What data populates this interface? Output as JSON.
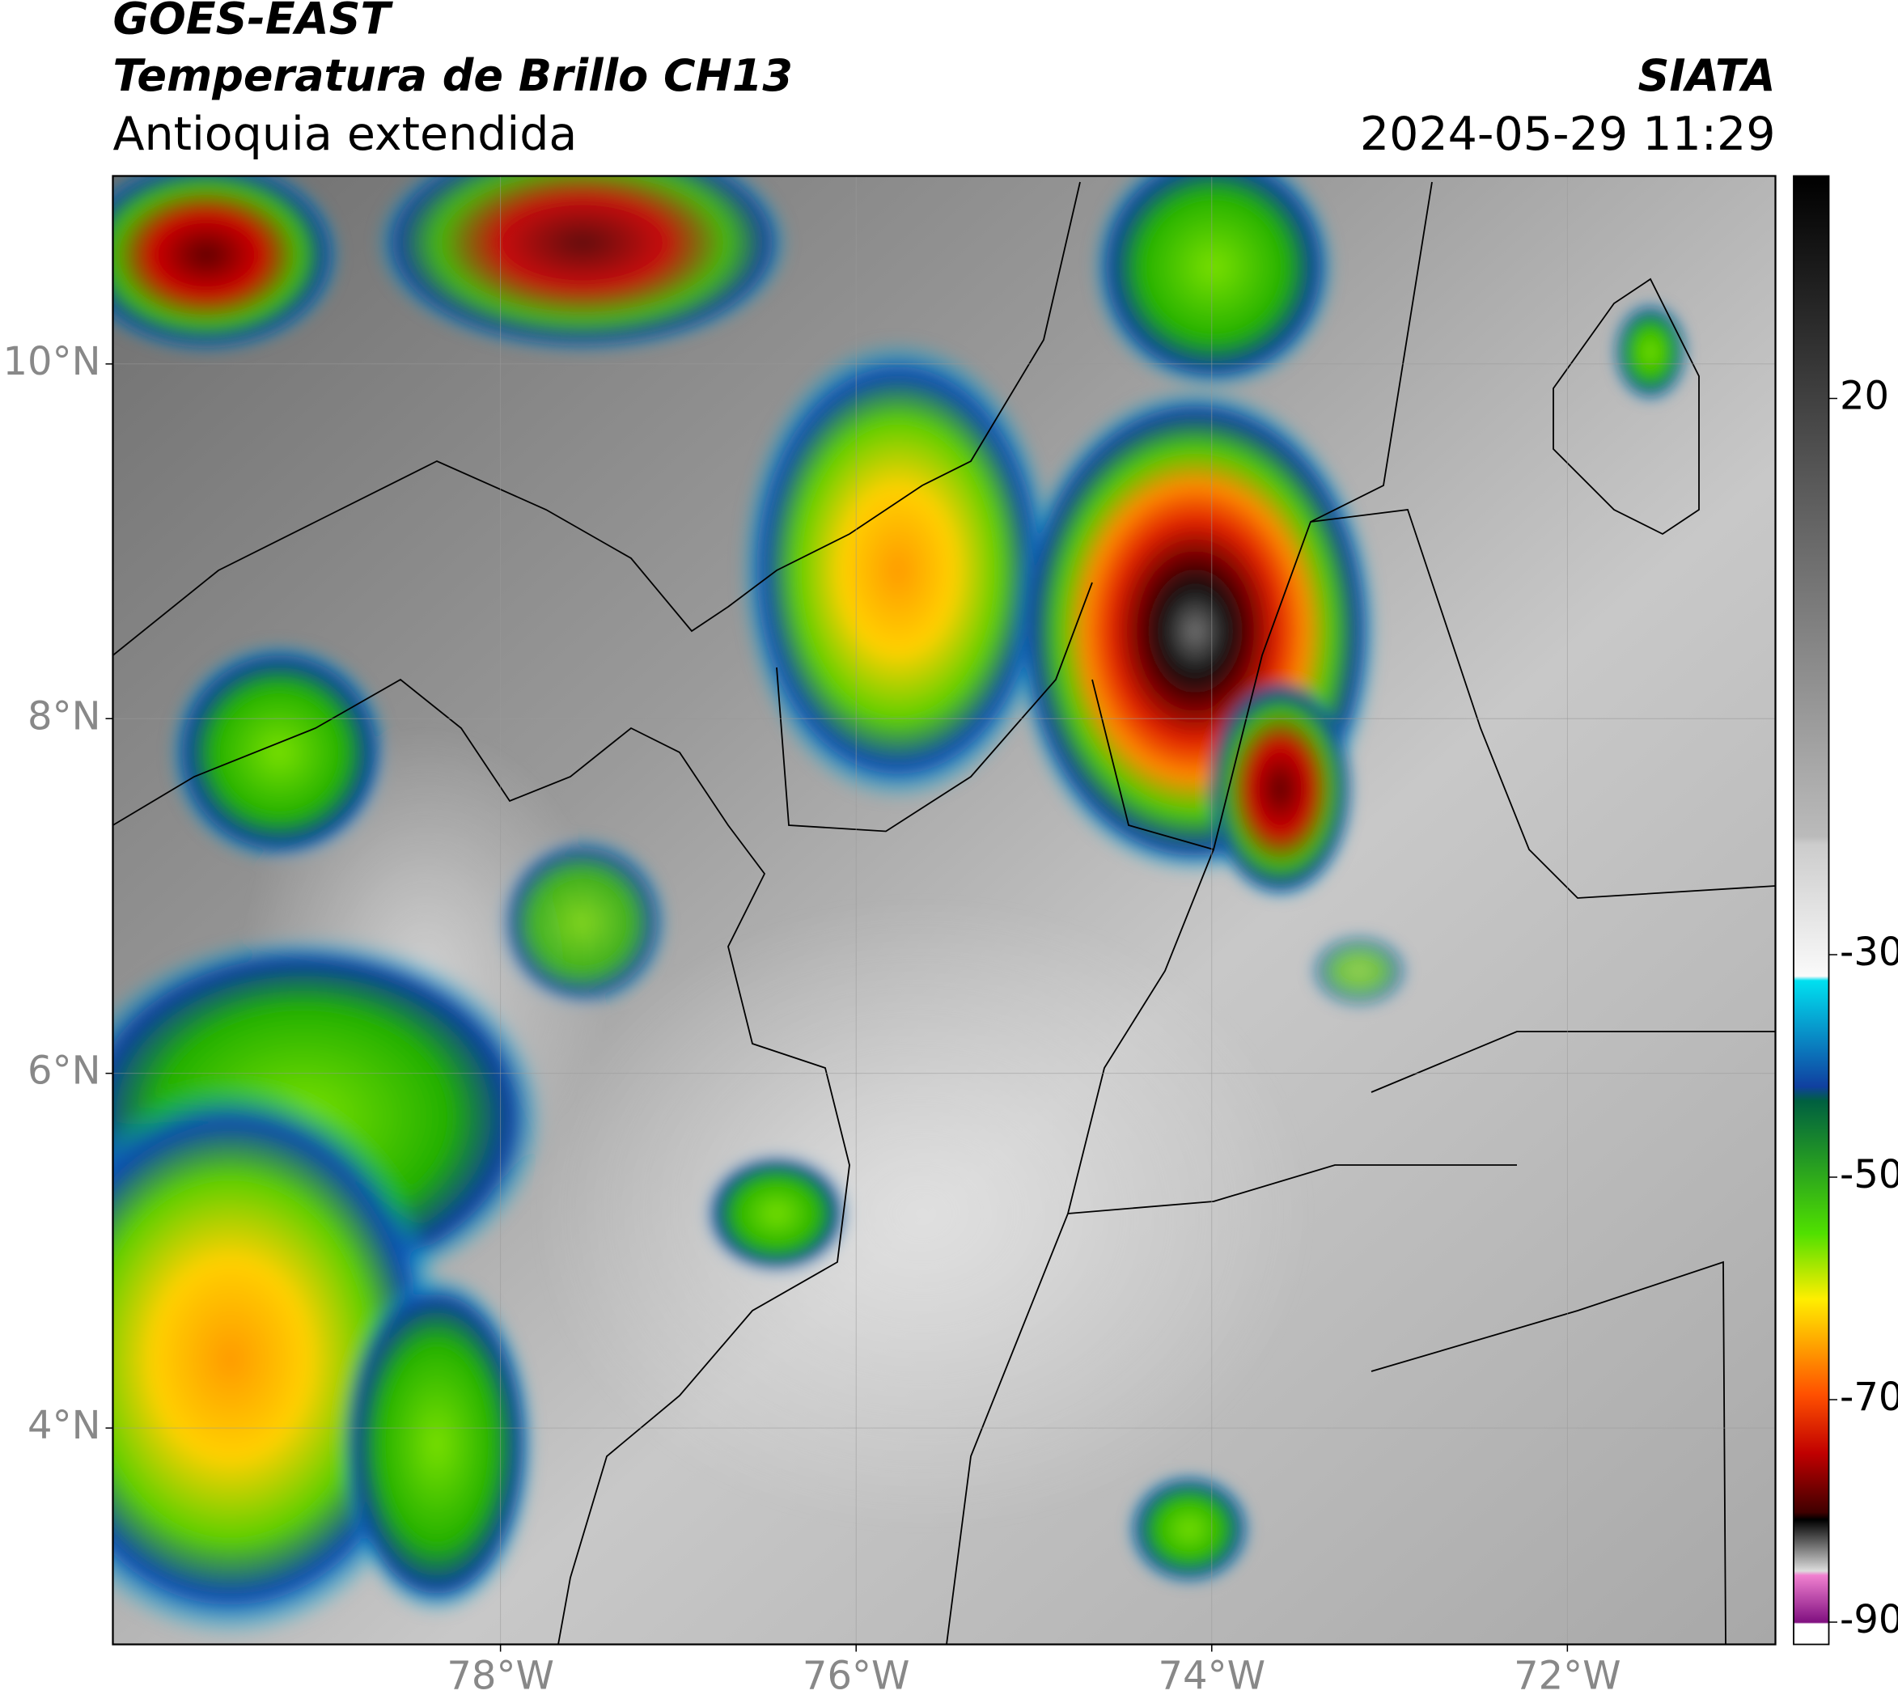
{
  "chart_data": {
    "type": "map",
    "title": "GOES-EAST",
    "subtitle": "Temperatura de Brillo CH13",
    "region": "Antioquia extendida",
    "source": "SIATA",
    "datetime": "2024-05-29 11:29",
    "xlim": [
      -80.18,
      -70.83
    ],
    "ylim": [
      2.78,
      11.06
    ],
    "xticks": [
      {
        "value": -78,
        "label": "78°W"
      },
      {
        "value": -76,
        "label": "76°W"
      },
      {
        "value": -74,
        "label": "74°W"
      },
      {
        "value": -72,
        "label": "72°W"
      }
    ],
    "yticks": [
      {
        "value": 10,
        "label": "10°N"
      },
      {
        "value": 8,
        "label": "8°N"
      },
      {
        "value": 6,
        "label": "6°N"
      },
      {
        "value": 4,
        "label": "4°N"
      }
    ],
    "grid": true,
    "colorbar": {
      "lim": [
        -92,
        40
      ],
      "ticks": [
        20,
        -30,
        -50,
        -70,
        -90
      ]
    }
  }
}
